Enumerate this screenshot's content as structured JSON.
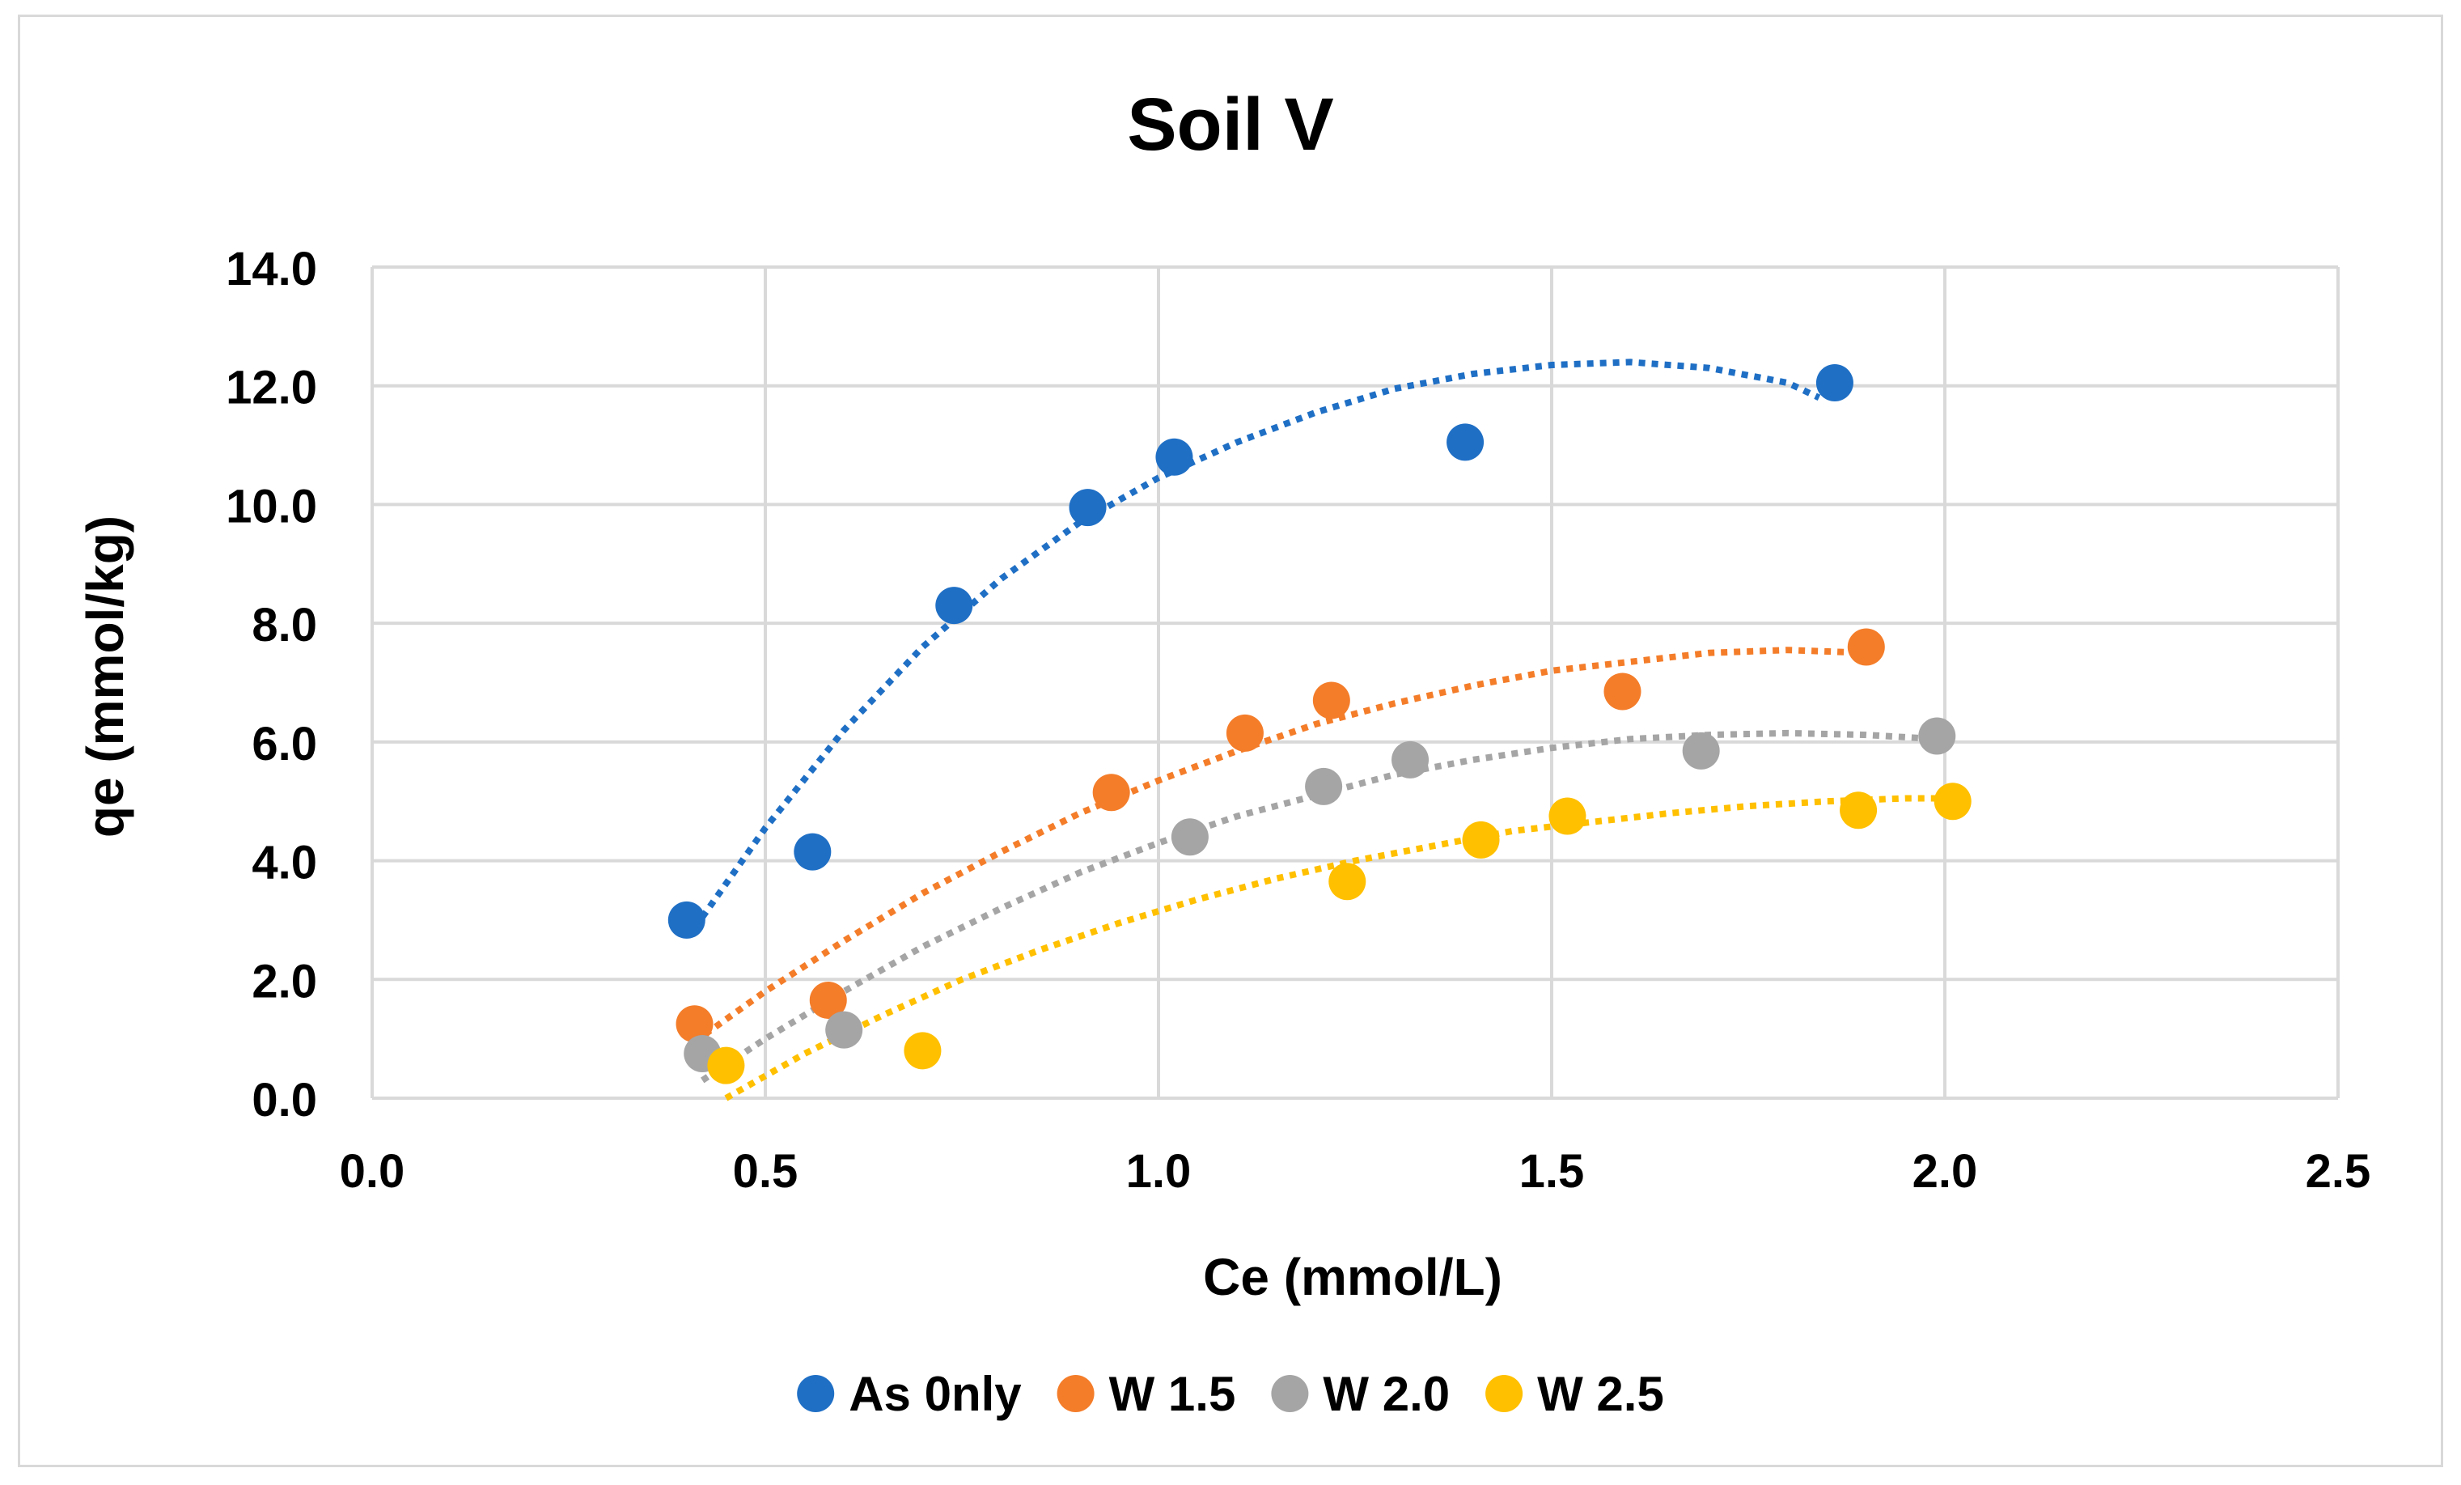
{
  "chart_data": {
    "type": "scatter",
    "title": "Soil V",
    "xlabel": "Ce (mmol/L)",
    "ylabel": "qe (mmol/kg)",
    "xlim": [
      0,
      2.5
    ],
    "ylim": [
      0,
      14
    ],
    "xticks": [
      0.0,
      0.5,
      1.0,
      1.5,
      2.0,
      2.5
    ],
    "yticks": [
      0.0,
      2.0,
      4.0,
      6.0,
      8.0,
      10.0,
      12.0,
      14.0
    ],
    "x_tick_labels": [
      "0.0",
      "0.5",
      "1.0",
      "1.5",
      "2.0",
      "2.5"
    ],
    "y_tick_labels": [
      "0.0",
      "2.0",
      "4.0",
      "6.0",
      "8.0",
      "10.0",
      "12.0",
      "14.0"
    ],
    "grid": true,
    "legend_position": "bottom",
    "series": [
      {
        "name": "As 0nly",
        "color": "#1f6fc5",
        "points": [
          [
            0.4,
            3.0
          ],
          [
            0.56,
            4.15
          ],
          [
            0.74,
            8.3
          ],
          [
            0.91,
            9.95
          ],
          [
            1.02,
            10.8
          ],
          [
            1.39,
            11.05
          ],
          [
            1.86,
            12.05
          ]
        ],
        "trend": [
          [
            0.42,
            3.05
          ],
          [
            0.5,
            4.55
          ],
          [
            0.6,
            6.2
          ],
          [
            0.7,
            7.6
          ],
          [
            0.8,
            8.75
          ],
          [
            0.9,
            9.7
          ],
          [
            1.0,
            10.45
          ],
          [
            1.1,
            11.05
          ],
          [
            1.2,
            11.55
          ],
          [
            1.3,
            11.95
          ],
          [
            1.4,
            12.2
          ],
          [
            1.5,
            12.35
          ],
          [
            1.6,
            12.4
          ],
          [
            1.7,
            12.3
          ],
          [
            1.8,
            12.05
          ],
          [
            1.84,
            11.8
          ]
        ]
      },
      {
        "name": "W 1.5",
        "color": "#f47d2a",
        "points": [
          [
            0.41,
            1.25
          ],
          [
            0.58,
            1.65
          ],
          [
            0.94,
            5.15
          ],
          [
            1.11,
            6.15
          ],
          [
            1.22,
            6.7
          ],
          [
            1.59,
            6.85
          ],
          [
            1.9,
            7.6
          ]
        ],
        "trend": [
          [
            0.41,
            0.95
          ],
          [
            0.5,
            1.8
          ],
          [
            0.6,
            2.65
          ],
          [
            0.7,
            3.45
          ],
          [
            0.8,
            4.15
          ],
          [
            0.9,
            4.8
          ],
          [
            1.0,
            5.35
          ],
          [
            1.1,
            5.85
          ],
          [
            1.2,
            6.3
          ],
          [
            1.3,
            6.65
          ],
          [
            1.4,
            6.95
          ],
          [
            1.5,
            7.2
          ],
          [
            1.6,
            7.35
          ],
          [
            1.7,
            7.5
          ],
          [
            1.8,
            7.55
          ],
          [
            1.9,
            7.5
          ]
        ]
      },
      {
        "name": "W 2.0",
        "color": "#a5a5a5",
        "points": [
          [
            0.42,
            0.75
          ],
          [
            0.6,
            1.15
          ],
          [
            1.04,
            4.4
          ],
          [
            1.21,
            5.25
          ],
          [
            1.32,
            5.7
          ],
          [
            1.69,
            5.85
          ],
          [
            1.99,
            6.1
          ]
        ],
        "trend": [
          [
            0.42,
            0.3
          ],
          [
            0.5,
            1.0
          ],
          [
            0.6,
            1.8
          ],
          [
            0.7,
            2.55
          ],
          [
            0.8,
            3.2
          ],
          [
            0.9,
            3.8
          ],
          [
            1.0,
            4.3
          ],
          [
            1.1,
            4.75
          ],
          [
            1.2,
            5.1
          ],
          [
            1.3,
            5.45
          ],
          [
            1.4,
            5.7
          ],
          [
            1.5,
            5.9
          ],
          [
            1.6,
            6.05
          ],
          [
            1.7,
            6.12
          ],
          [
            1.8,
            6.15
          ],
          [
            1.9,
            6.12
          ],
          [
            1.99,
            6.05
          ]
        ]
      },
      {
        "name": "W 2.5",
        "color": "#ffc000",
        "points": [
          [
            0.45,
            0.55
          ],
          [
            0.7,
            0.8
          ],
          [
            1.24,
            3.65
          ],
          [
            1.41,
            4.35
          ],
          [
            1.52,
            4.75
          ],
          [
            1.89,
            4.85
          ],
          [
            2.01,
            5.0
          ]
        ],
        "trend": [
          [
            0.45,
            0.0
          ],
          [
            0.55,
            0.75
          ],
          [
            0.65,
            1.4
          ],
          [
            0.75,
            2.0
          ],
          [
            0.85,
            2.5
          ],
          [
            0.95,
            2.95
          ],
          [
            1.05,
            3.35
          ],
          [
            1.15,
            3.7
          ],
          [
            1.25,
            4.0
          ],
          [
            1.35,
            4.25
          ],
          [
            1.45,
            4.5
          ],
          [
            1.55,
            4.65
          ],
          [
            1.65,
            4.8
          ],
          [
            1.75,
            4.92
          ],
          [
            1.85,
            5.0
          ],
          [
            1.95,
            5.05
          ],
          [
            2.01,
            5.05
          ]
        ]
      }
    ]
  }
}
